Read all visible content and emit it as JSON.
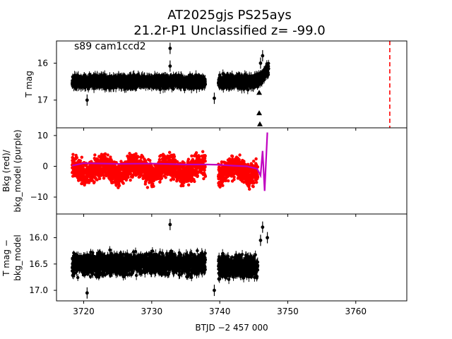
{
  "title": {
    "line1": "AT2025gjs  PS25ays",
    "line2": "21.2r-P1 Unclassified z= -99.0"
  },
  "xlabel": "BTJD −2 457 000",
  "chart_data": [
    {
      "type": "scatter",
      "panel": "top",
      "ylabel": "T mag",
      "annotation": "s89 cam1ccd2",
      "xlim": [
        3716,
        3767.5
      ],
      "ylim": [
        17.75,
        15.4
      ],
      "y_inverted": true,
      "xticks": [
        "3720",
        "3730",
        "3740",
        "3750",
        "3760"
      ],
      "yticks": [
        "16",
        "17"
      ],
      "series": [
        {
          "kind": "band",
          "color": "#000000",
          "segments": [
            {
              "x": [
                3718.3,
                3737.9
              ],
              "mid": 16.5,
              "half": 0.23
            },
            {
              "x": [
                3739.8,
                3745.6
              ],
              "mid": 16.5,
              "half": 0.25
            }
          ]
        },
        {
          "kind": "band_rising",
          "color": "#000000",
          "x": [
            3745.6,
            3747.2
          ],
          "y_from": 16.5,
          "y_to": 16.15
        },
        {
          "kind": "outliers",
          "color": "#000000",
          "x": [
            3732.7,
            3732.7,
            3720.5,
            3739.2,
            3746.3,
            3746.0
          ],
          "y": [
            15.6,
            16.08,
            17.0,
            16.95,
            15.8,
            16.0
          ]
        },
        {
          "kind": "upper_limits",
          "marker": "triangle",
          "color": "#000000",
          "x": [
            3745.8,
            3745.8,
            3745.9
          ],
          "y": [
            16.8,
            17.35,
            17.65
          ]
        },
        {
          "kind": "vline",
          "style": "dashed",
          "color": "#ff0000",
          "x": 3765.0
        }
      ]
    },
    {
      "type": "scatter",
      "panel": "middle",
      "ylabel": "Bkg (red)/\nbkg_model (purple)",
      "xlim": [
        3716,
        3767.5
      ],
      "ylim": [
        -15.5,
        12.5
      ],
      "yticks": [
        "10",
        "0",
        "−10"
      ],
      "series": [
        {
          "kind": "band",
          "color": "#ff0000",
          "segments": [
            {
              "x": [
                3718.3,
                3737.9
              ],
              "mid": -1.0,
              "half": 5.5
            },
            {
              "x": [
                3739.8,
                3745.6
              ],
              "mid": -1.5,
              "half": 5.5
            }
          ]
        },
        {
          "kind": "model_line",
          "color": "#c000c0",
          "x": [
            3718.3,
            3720,
            3725,
            3730,
            3735,
            3737.9,
            3739.8,
            3742,
            3744,
            3745.5,
            3746.0,
            3746.3,
            3746.6,
            3747.0
          ],
          "y": [
            0.2,
            1.0,
            0.8,
            0.9,
            0.6,
            0.6,
            0.5,
            0.2,
            0.0,
            -0.8,
            -3.0,
            5.0,
            -8.0,
            11.0
          ]
        }
      ]
    },
    {
      "type": "scatter",
      "panel": "bottom",
      "ylabel": "T mag −\nbkg_model",
      "xlim": [
        3716,
        3767.5
      ],
      "ylim": [
        17.2,
        15.55
      ],
      "y_inverted": true,
      "yticks": [
        "16.0",
        "16.5",
        "17.0"
      ],
      "series": [
        {
          "kind": "band",
          "color": "#000000",
          "segments": [
            {
              "x": [
                3718.3,
                3737.9
              ],
              "mid": 16.5,
              "half": 0.28
            },
            {
              "x": [
                3739.8,
                3745.6
              ],
              "mid": 16.55,
              "half": 0.3
            }
          ]
        },
        {
          "kind": "outliers",
          "color": "#000000",
          "x": [
            3732.7,
            3746.0,
            3746.3,
            3747.0,
            3720.5,
            3739.2
          ],
          "y": [
            15.75,
            16.05,
            15.8,
            16.0,
            17.05,
            17.0
          ]
        }
      ]
    }
  ]
}
